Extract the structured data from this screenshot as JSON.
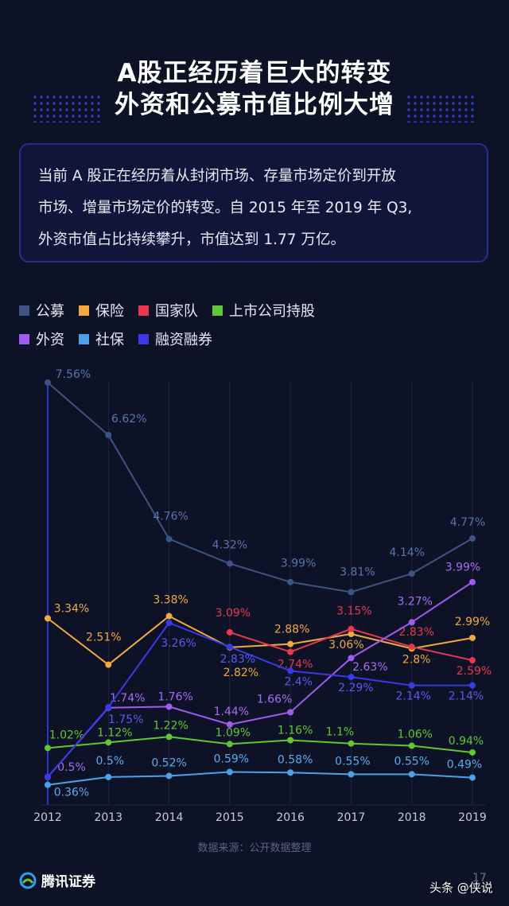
{
  "header": {
    "title_line1": "A股正经历着巨大的转变",
    "title_line2": "外资和公募市值比例大增"
  },
  "intro": {
    "line1": "当前 A 股正在经历着从封闭市场、存量市场定价到开放",
    "line2": "市场、增量市场定价的转变。自 2015 年至 2019 年 Q3,",
    "line3": "外资市值占比持续攀升，市值达到 1.77 万亿。"
  },
  "legend": {
    "row1": [
      {
        "label": "公募",
        "color": "#3d5482"
      },
      {
        "label": "保险",
        "color": "#f0aa40"
      },
      {
        "label": "国家队",
        "color": "#e8384f"
      },
      {
        "label": "上市公司持股",
        "color": "#5fc832"
      }
    ],
    "row2": [
      {
        "label": "外资",
        "color": "#a05cf0"
      },
      {
        "label": "社保",
        "color": "#4aa3e8"
      },
      {
        "label": "融资融券",
        "color": "#3a3ae8"
      }
    ]
  },
  "chart_data": {
    "type": "line",
    "x": [
      "2012",
      "2013",
      "2014",
      "2015",
      "2016",
      "2017",
      "2018",
      "2019"
    ],
    "ylim": [
      0,
      8
    ],
    "grid": "vertical",
    "series": [
      {
        "name": "公募",
        "color": "#3d5482",
        "labelColor": "#5a74b0",
        "values": [
          7.56,
          6.62,
          4.76,
          4.32,
          3.99,
          3.81,
          4.14,
          4.77
        ],
        "labels": [
          "7.56%",
          "6.62%",
          "4.76%",
          "4.32%",
          "3.99%",
          "3.81%",
          "4.14%",
          "4.77%"
        ]
      },
      {
        "name": "保险",
        "color": "#f0aa40",
        "labelColor": "#f0aa40",
        "values": [
          3.34,
          2.51,
          3.38,
          2.82,
          2.88,
          3.06,
          2.8,
          2.99
        ],
        "labels": [
          "3.34%",
          "2.51%",
          "3.38%",
          "2.82%",
          "2.88%",
          "3.06%",
          "2.8%",
          "2.99%"
        ]
      },
      {
        "name": "国家队",
        "color": "#e8384f",
        "labelColor": "#e8384f",
        "values": [
          null,
          null,
          null,
          3.09,
          2.74,
          3.15,
          2.83,
          2.59
        ],
        "labels": [
          "",
          "",
          "",
          "3.09%",
          "2.74%",
          "3.15%",
          "2.83%",
          "2.59%"
        ]
      },
      {
        "name": "上市公司持股",
        "color": "#5fc832",
        "labelColor": "#5fc832",
        "values": [
          1.02,
          1.12,
          1.22,
          1.09,
          1.16,
          1.1,
          1.06,
          0.94
        ],
        "labels": [
          "1.02%",
          "1.12%",
          "1.22%",
          "1.09%",
          "1.16%",
          "1.1%",
          "1.06%",
          "0.94%"
        ]
      },
      {
        "name": "外资",
        "color": "#a05cf0",
        "labelColor": "#a86cf5",
        "values": [
          0.5,
          1.74,
          1.76,
          1.44,
          1.66,
          2.63,
          3.27,
          3.99
        ],
        "labels": [
          "0.5%",
          "1.74%",
          "1.76%",
          "1.44%",
          "1.66%",
          "2.63%",
          "3.27%",
          "3.99%"
        ]
      },
      {
        "name": "社保",
        "color": "#4aa3e8",
        "labelColor": "#5aaeee",
        "values": [
          0.36,
          0.5,
          0.52,
          0.59,
          0.58,
          0.55,
          0.55,
          0.49
        ],
        "labels": [
          "0.36%",
          "0.5%",
          "0.52%",
          "0.59%",
          "0.58%",
          "0.55%",
          "0.55%",
          "0.49%"
        ]
      },
      {
        "name": "融资融券",
        "color": "#3a3ae8",
        "labelColor": "#5a5af0",
        "values": [
          0.5,
          1.75,
          3.26,
          2.83,
          2.4,
          2.29,
          2.14,
          2.14
        ],
        "labels": [
          "",
          "1.75%",
          "3.26%",
          "2.83%",
          "2.4%",
          "2.29%",
          "2.14%",
          "2.14%"
        ]
      }
    ]
  },
  "footer": {
    "source": "数据来源：公开数据整理",
    "brand": "腾讯证券",
    "page": "17",
    "watermark": "头条 @侠说"
  }
}
